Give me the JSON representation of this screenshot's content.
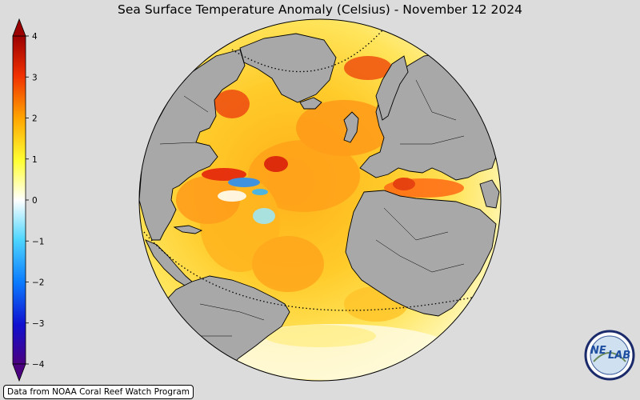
{
  "title": "Sea Surface Temperature Anomaly (Celsius) - November 12 2024",
  "credit": "Data from NOAA Coral Reef Watch Program",
  "logo": {
    "text_left": "NE",
    "text_right": "LAB"
  },
  "colorbar": {
    "min": -4,
    "max": 4,
    "ticks": [
      {
        "value": 4,
        "label": "4"
      },
      {
        "value": 3,
        "label": "3"
      },
      {
        "value": 2,
        "label": "2"
      },
      {
        "value": 1,
        "label": "1"
      },
      {
        "value": 0,
        "label": "0"
      },
      {
        "value": -1,
        "label": "−1"
      },
      {
        "value": -2,
        "label": "−2"
      },
      {
        "value": -3,
        "label": "−3"
      },
      {
        "value": -4,
        "label": "−4"
      }
    ],
    "colors": [
      "#4b0080",
      "#1010d0",
      "#0a7cff",
      "#4fd6ff",
      "#ffffff",
      "#ffff33",
      "#ffa500",
      "#f03000",
      "#9b0000"
    ]
  },
  "colors": {
    "land": "#a8a8a8",
    "background": "#dcdcdc",
    "ocean_warm": "#ffc21a"
  }
}
